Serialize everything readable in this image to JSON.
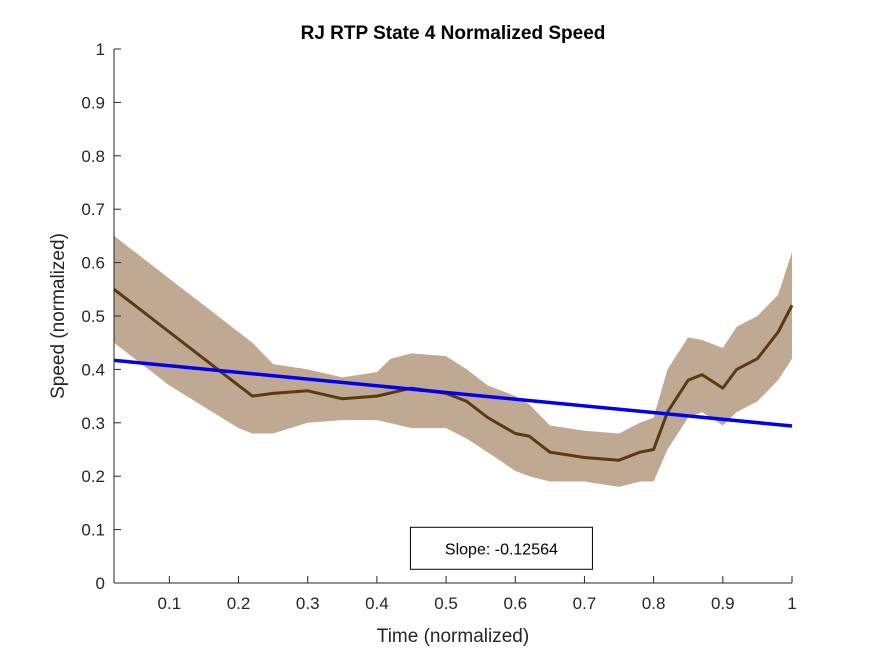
{
  "chart_data": {
    "type": "line",
    "title": "RJ  RTP State 4 Normalized Speed",
    "xlabel": "Time (normalized)",
    "ylabel": "Speed (normalized)",
    "xlim": [
      0.02,
      1.0
    ],
    "ylim": [
      0,
      1
    ],
    "xticks": [
      0.1,
      0.2,
      0.3,
      0.4,
      0.5,
      0.6,
      0.7,
      0.8,
      0.9,
      1
    ],
    "xtick_labels": [
      "0.1",
      "0.2",
      "0.3",
      "0.4",
      "0.5",
      "0.6",
      "0.7",
      "0.8",
      "0.9",
      "1"
    ],
    "yticks": [
      0,
      0.1,
      0.2,
      0.3,
      0.4,
      0.5,
      0.6,
      0.7,
      0.8,
      0.9,
      1
    ],
    "ytick_labels": [
      "0",
      "0.1",
      "0.2",
      "0.3",
      "0.4",
      "0.5",
      "0.6",
      "0.7",
      "0.8",
      "0.9",
      "1"
    ],
    "grid": false,
    "series": [
      {
        "role": "mean",
        "color": "#5a3a10",
        "x": [
          0.02,
          0.05,
          0.1,
          0.15,
          0.2,
          0.22,
          0.25,
          0.3,
          0.35,
          0.4,
          0.45,
          0.5,
          0.53,
          0.56,
          0.6,
          0.62,
          0.65,
          0.7,
          0.75,
          0.78,
          0.8,
          0.82,
          0.85,
          0.87,
          0.9,
          0.92,
          0.95,
          0.98,
          1.0
        ],
        "y": [
          0.55,
          0.52,
          0.47,
          0.42,
          0.37,
          0.35,
          0.355,
          0.36,
          0.345,
          0.35,
          0.365,
          0.355,
          0.34,
          0.31,
          0.28,
          0.275,
          0.245,
          0.235,
          0.23,
          0.245,
          0.25,
          0.32,
          0.38,
          0.39,
          0.365,
          0.4,
          0.42,
          0.47,
          0.52
        ]
      },
      {
        "role": "upper-band",
        "color": "#c0a992",
        "x": [
          0.02,
          0.05,
          0.1,
          0.15,
          0.2,
          0.22,
          0.25,
          0.3,
          0.35,
          0.4,
          0.42,
          0.45,
          0.5,
          0.53,
          0.56,
          0.6,
          0.62,
          0.65,
          0.7,
          0.75,
          0.78,
          0.8,
          0.82,
          0.85,
          0.87,
          0.9,
          0.92,
          0.95,
          0.98,
          1.0
        ],
        "y": [
          0.65,
          0.62,
          0.57,
          0.52,
          0.47,
          0.45,
          0.41,
          0.4,
          0.385,
          0.395,
          0.42,
          0.43,
          0.425,
          0.4,
          0.37,
          0.35,
          0.335,
          0.295,
          0.285,
          0.28,
          0.3,
          0.31,
          0.4,
          0.46,
          0.455,
          0.44,
          0.48,
          0.5,
          0.54,
          0.62
        ]
      },
      {
        "role": "lower-band",
        "color": "#c0a992",
        "x": [
          0.02,
          0.05,
          0.1,
          0.15,
          0.2,
          0.22,
          0.25,
          0.3,
          0.35,
          0.4,
          0.45,
          0.5,
          0.53,
          0.56,
          0.6,
          0.62,
          0.65,
          0.7,
          0.75,
          0.78,
          0.8,
          0.82,
          0.85,
          0.87,
          0.9,
          0.92,
          0.95,
          0.98,
          1.0
        ],
        "y": [
          0.45,
          0.42,
          0.37,
          0.33,
          0.29,
          0.28,
          0.28,
          0.3,
          0.305,
          0.305,
          0.29,
          0.29,
          0.27,
          0.245,
          0.21,
          0.2,
          0.19,
          0.19,
          0.18,
          0.19,
          0.19,
          0.25,
          0.31,
          0.32,
          0.295,
          0.32,
          0.34,
          0.38,
          0.42
        ]
      },
      {
        "role": "regression-line",
        "color": "#0000ee",
        "x": [
          0.02,
          1.0
        ],
        "y": [
          0.417,
          0.294
        ]
      }
    ],
    "annotations": [
      {
        "text": "Slope: -0.12564",
        "x": 0.58,
        "y": 0.065
      }
    ]
  }
}
